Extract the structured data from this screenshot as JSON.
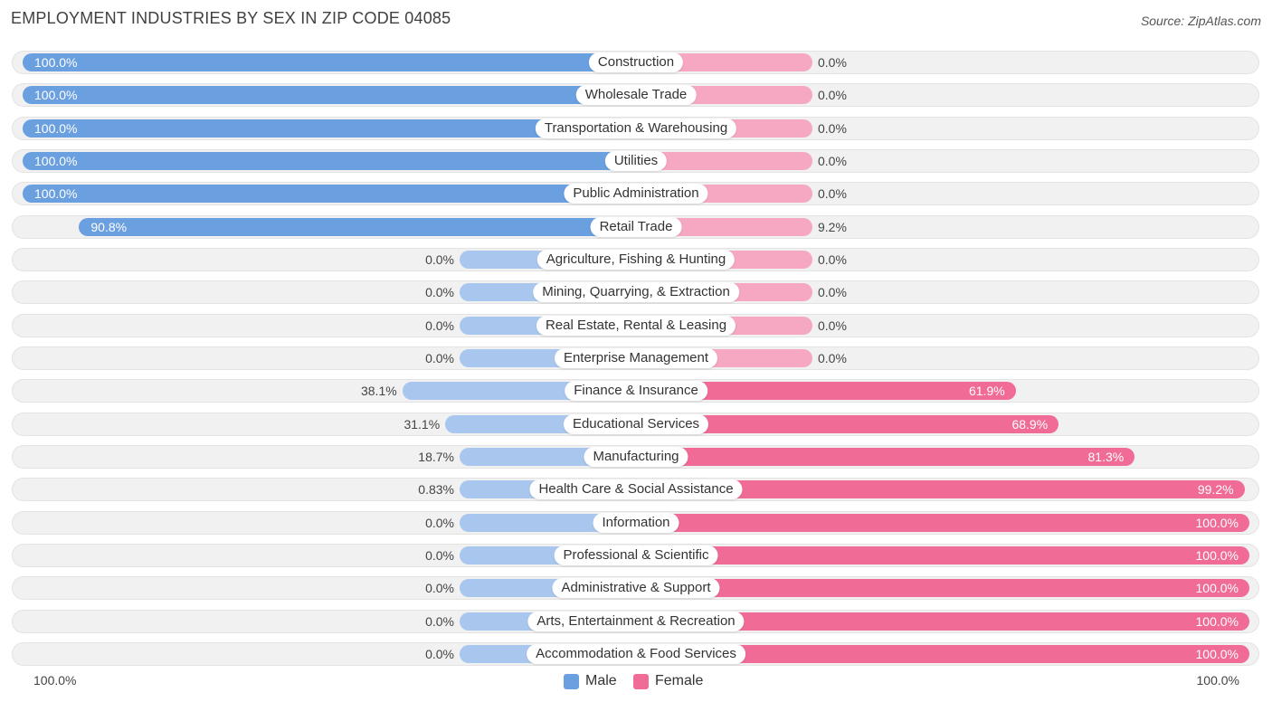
{
  "title": "EMPLOYMENT INDUSTRIES BY SEX IN ZIP CODE 04085",
  "source": "Source: ZipAtlas.com",
  "colors": {
    "male": "#6a9fe0",
    "male_light": "#a9c7ee",
    "female": "#f06b96",
    "female_light": "#f6a8c2"
  },
  "axis": {
    "left_label": "100.0%",
    "right_label": "100.0%"
  },
  "legend": {
    "male": "Male",
    "female": "Female"
  },
  "chart_data": {
    "type": "bar",
    "orientation": "horizontal-diverging",
    "title": "EMPLOYMENT INDUSTRIES BY SEX IN ZIP CODE 04085",
    "xlim": [
      -100,
      100
    ],
    "categories": [
      "Construction",
      "Wholesale Trade",
      "Transportation & Warehousing",
      "Utilities",
      "Public Administration",
      "Retail Trade",
      "Agriculture, Fishing & Hunting",
      "Mining, Quarrying, & Extraction",
      "Real Estate, Rental & Leasing",
      "Enterprise Management",
      "Finance & Insurance",
      "Educational Services",
      "Manufacturing",
      "Health Care & Social Assistance",
      "Information",
      "Professional & Scientific",
      "Administrative & Support",
      "Arts, Entertainment & Recreation",
      "Accommodation & Food Services"
    ],
    "series": [
      {
        "name": "Male",
        "values": [
          100.0,
          100.0,
          100.0,
          100.0,
          100.0,
          90.8,
          0.0,
          0.0,
          0.0,
          0.0,
          38.1,
          31.1,
          18.7,
          0.83,
          0.0,
          0.0,
          0.0,
          0.0,
          0.0
        ],
        "labels": [
          "100.0%",
          "100.0%",
          "100.0%",
          "100.0%",
          "100.0%",
          "90.8%",
          "0.0%",
          "0.0%",
          "0.0%",
          "0.0%",
          "38.1%",
          "31.1%",
          "18.7%",
          "0.83%",
          "0.0%",
          "0.0%",
          "0.0%",
          "0.0%",
          "0.0%"
        ]
      },
      {
        "name": "Female",
        "values": [
          0.0,
          0.0,
          0.0,
          0.0,
          0.0,
          9.2,
          0.0,
          0.0,
          0.0,
          0.0,
          61.9,
          68.9,
          81.3,
          99.2,
          100.0,
          100.0,
          100.0,
          100.0,
          100.0
        ],
        "labels": [
          "0.0%",
          "0.0%",
          "0.0%",
          "0.0%",
          "0.0%",
          "9.2%",
          "0.0%",
          "0.0%",
          "0.0%",
          "0.0%",
          "61.9%",
          "68.9%",
          "81.3%",
          "99.2%",
          "100.0%",
          "100.0%",
          "100.0%",
          "100.0%",
          "100.0%"
        ]
      }
    ],
    "legend_position": "bottom-center",
    "grid": false
  }
}
